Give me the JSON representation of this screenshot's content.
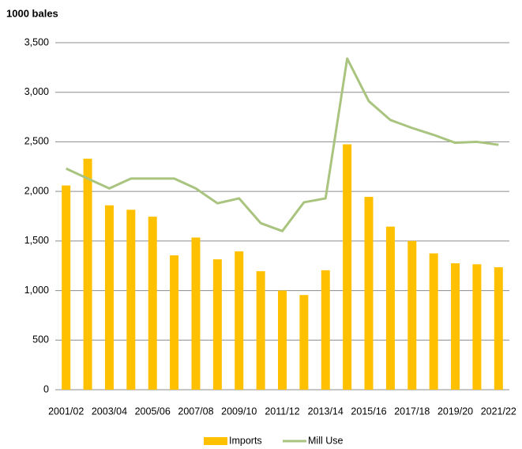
{
  "chart_data": {
    "type": "bar-line",
    "title": "1000 bales",
    "categories": [
      "2001/02",
      null,
      "2003/04",
      null,
      "2005/06",
      null,
      "2007/08",
      null,
      "2009/10",
      null,
      "2011/12",
      null,
      "2013/14",
      null,
      "2015/16",
      null,
      "2017/18",
      null,
      "2019/20",
      null,
      "2021/22"
    ],
    "series": [
      {
        "name": "Imports",
        "type": "bar",
        "color": "#ffc000",
        "values": [
          2060,
          2330,
          1860,
          1815,
          1745,
          1355,
          1535,
          1315,
          1395,
          1195,
          1000,
          955,
          1205,
          2475,
          1945,
          1645,
          1500,
          1375,
          1275,
          1265,
          1235
        ]
      },
      {
        "name": "Mill Use",
        "type": "line",
        "color": "#a9c47f",
        "values": [
          2230,
          2130,
          2030,
          2130,
          2130,
          2130,
          2030,
          1880,
          1930,
          1680,
          1600,
          1890,
          1930,
          3340,
          2910,
          2720,
          2640,
          2570,
          2490,
          2500,
          2470
        ]
      }
    ],
    "ylim": [
      0,
      3500
    ],
    "yticks": [
      0,
      500,
      {
        "value": 1000,
        "label": "1,000"
      },
      {
        "value": 1500,
        "label": "1,500"
      },
      {
        "value": 2000,
        "label": "2,000"
      },
      {
        "value": 2500,
        "label": "2,500"
      },
      {
        "value": 3000,
        "label": "3,000"
      },
      {
        "value": 3500,
        "label": "3,500"
      }
    ],
    "grid": true,
    "legend": "bottom"
  }
}
